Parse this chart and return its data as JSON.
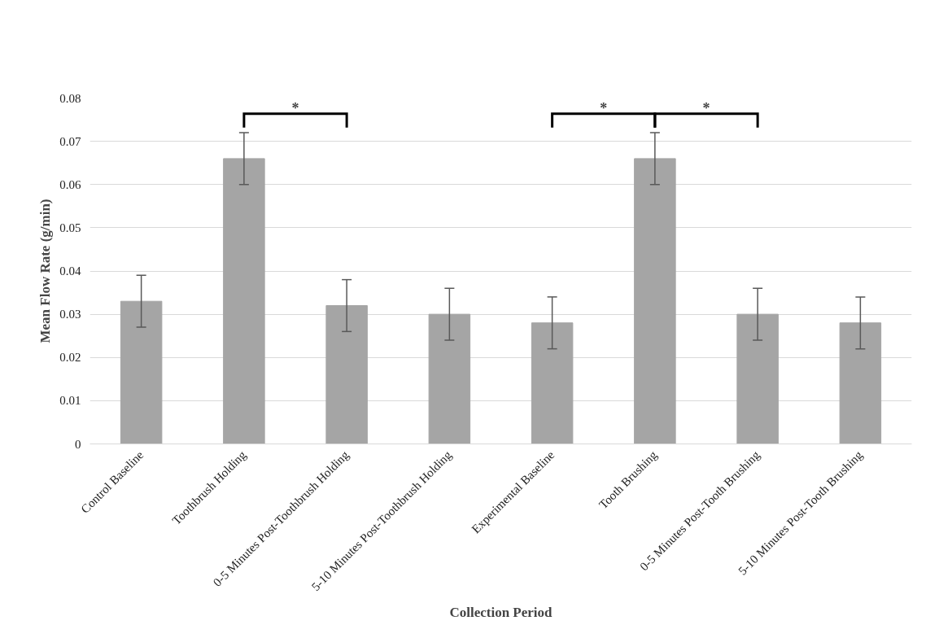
{
  "chart_data": {
    "type": "bar",
    "xlabel": "Collection Period",
    "ylabel": "Mean Flow Rate (g/min)",
    "categories": [
      "Control Baseline",
      "Toothbrush Holding",
      "0-5 Minutes Post-Toothbrush Holding",
      "5-10 Minutes Post-Toothbrush Holding",
      "Experimental Baseline",
      "Tooth Brushing",
      "0-5 Minutes Post-Tooth Brushing",
      "5-10 Minutes Post-Tooth Brushing"
    ],
    "values": [
      0.033,
      0.066,
      0.032,
      0.03,
      0.028,
      0.066,
      0.03,
      0.028
    ],
    "errors": [
      0.006,
      0.006,
      0.006,
      0.006,
      0.006,
      0.006,
      0.006,
      0.006
    ],
    "color": "#a5a5a5",
    "ylim": [
      0,
      0.08
    ],
    "yticks": [
      0,
      0.01,
      0.02,
      0.03,
      0.04,
      0.05,
      0.06,
      0.07,
      0.08
    ],
    "grid": "y",
    "annotations": [
      "*",
      "*",
      "*"
    ]
  }
}
